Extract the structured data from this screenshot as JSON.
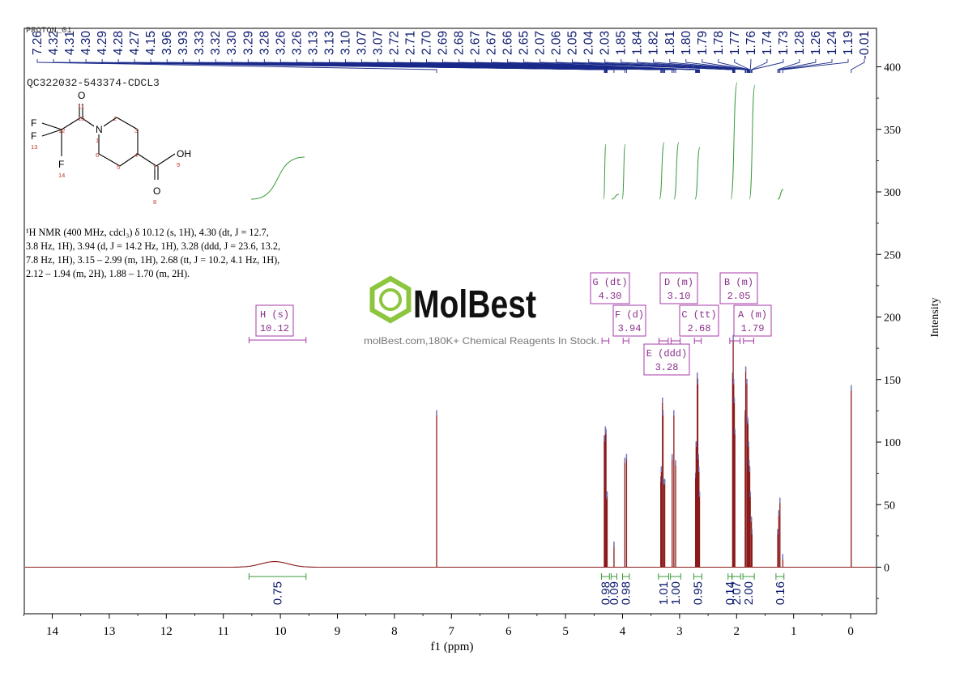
{
  "header": {
    "experiment": "PROTON_01",
    "sample": "QC322032-543374-CDCL3"
  },
  "description": {
    "line1": "¹H NMR (400 MHz, cdcl₃) δ 10.12 (s, 1H), 4.30 (dt, J = 12.7,",
    "line2": "3.8 Hz, 1H), 3.94 (d, J = 14.2 Hz, 1H), 3.28 (ddd, J = 23.6, 13.2,",
    "line3": "7.8 Hz, 1H), 3.15 – 2.99 (m, 1H), 2.68 (tt, J = 10.2, 4.1 Hz, 1H),",
    "line4": "2.12 – 1.94 (m, 2H), 1.88 – 1.70 (m, 2H)."
  },
  "watermark": {
    "brand": "MolBest",
    "tagline": "molBest.com,180K+ Chemical Reagents In Stock."
  },
  "structure": {
    "atoms": [
      {
        "label": "O",
        "num": "11"
      },
      {
        "label": "F",
        "num": "15"
      },
      {
        "label": "",
        "num": "12"
      },
      {
        "label": "",
        "num": "10"
      },
      {
        "label": "N",
        "num": "1"
      },
      {
        "label": "",
        "num": "2"
      },
      {
        "label": "",
        "num": "3"
      },
      {
        "label": "F",
        "num": "13"
      },
      {
        "label": "",
        "num": "6"
      },
      {
        "label": "",
        "num": "4"
      },
      {
        "label": "F",
        "num": "14"
      },
      {
        "label": "",
        "num": "5"
      },
      {
        "label": "",
        "num": "7"
      },
      {
        "label": "OH",
        "num": "9"
      },
      {
        "label": "O",
        "num": "8"
      }
    ]
  },
  "chart_data": {
    "type": "line",
    "xlabel": "f1 (ppm)",
    "ylabel": "Intensity",
    "xlim": [
      14.5,
      -0.45
    ],
    "ylim": [
      -40,
      410
    ],
    "x_ticks": [
      14,
      13,
      12,
      11,
      10,
      9,
      8,
      7,
      6,
      5,
      4,
      3,
      2,
      1,
      0
    ],
    "y_ticks": [
      0,
      50,
      100,
      150,
      200,
      250,
      300,
      350,
      400
    ],
    "peak_labels": [
      "7.26",
      "4.32",
      "4.31",
      "4.30",
      "4.29",
      "4.28",
      "4.27",
      "4.15",
      "3.96",
      "3.93",
      "3.33",
      "3.32",
      "3.30",
      "3.29",
      "3.28",
      "3.26",
      "3.26",
      "3.13",
      "3.13",
      "3.10",
      "3.07",
      "3.07",
      "2.72",
      "2.71",
      "2.70",
      "2.69",
      "2.68",
      "2.67",
      "2.67",
      "2.66",
      "2.65",
      "2.07",
      "2.06",
      "2.05",
      "2.04",
      "2.03",
      "1.85",
      "1.84",
      "1.82",
      "1.81",
      "1.80",
      "1.79",
      "1.78",
      "1.77",
      "1.76",
      "1.74",
      "1.73",
      "1.28",
      "1.26",
      "1.24",
      "1.19",
      "-0.01"
    ],
    "multiplets": [
      {
        "id": "H",
        "type": "(s)",
        "shift": "10.12",
        "from": 10.55,
        "to": 9.55
      },
      {
        "id": "G",
        "type": "(dt)",
        "shift": "4.30",
        "from": 4.36,
        "to": 4.24
      },
      {
        "id": "F",
        "type": "(d)",
        "shift": "3.94",
        "from": 3.99,
        "to": 3.89
      },
      {
        "id": "E",
        "type": "(ddd)",
        "shift": "3.28",
        "from": 3.36,
        "to": 3.2
      },
      {
        "id": "D",
        "type": "(m)",
        "shift": "3.10",
        "from": 3.15,
        "to": 2.99
      },
      {
        "id": "C",
        "type": "(tt)",
        "shift": "2.68",
        "from": 2.74,
        "to": 2.62
      },
      {
        "id": "B",
        "type": "(m)",
        "shift": "2.05",
        "from": 2.12,
        "to": 1.94
      },
      {
        "id": "A",
        "type": "(m)",
        "shift": "1.79",
        "from": 1.88,
        "to": 1.7
      }
    ],
    "integrals": [
      {
        "value": "0.75",
        "from": 10.55,
        "to": 9.55
      },
      {
        "value": "0.98",
        "from": 4.37,
        "to": 4.23
      },
      {
        "value": "0.09",
        "from": 4.2,
        "to": 4.1
      },
      {
        "value": "0.98",
        "from": 4.0,
        "to": 3.88
      },
      {
        "value": "1.01",
        "from": 3.37,
        "to": 3.19
      },
      {
        "value": "1.00",
        "from": 3.16,
        "to": 2.98
      },
      {
        "value": "0.95",
        "from": 2.75,
        "to": 2.61
      },
      {
        "value": "0.14",
        "from": 2.15,
        "to": 2.08
      },
      {
        "value": "2.07",
        "from": 2.08,
        "to": 1.93
      },
      {
        "value": "2.00",
        "from": 1.89,
        "to": 1.69
      },
      {
        "value": "0.16",
        "from": 1.31,
        "to": 1.17
      }
    ],
    "peaks": [
      {
        "ppm": 7.26,
        "h": 125
      },
      {
        "ppm": 4.32,
        "h": 105
      },
      {
        "ppm": 4.31,
        "h": 104
      },
      {
        "ppm": 4.3,
        "h": 112
      },
      {
        "ppm": 4.29,
        "h": 110
      },
      {
        "ppm": 4.28,
        "h": 58
      },
      {
        "ppm": 4.27,
        "h": 60
      },
      {
        "ppm": 4.15,
        "h": 20
      },
      {
        "ppm": 3.96,
        "h": 87
      },
      {
        "ppm": 3.93,
        "h": 90
      },
      {
        "ppm": 3.33,
        "h": 72
      },
      {
        "ppm": 3.32,
        "h": 80
      },
      {
        "ppm": 3.3,
        "h": 135
      },
      {
        "ppm": 3.29,
        "h": 125
      },
      {
        "ppm": 3.28,
        "h": 70
      },
      {
        "ppm": 3.26,
        "h": 70
      },
      {
        "ppm": 3.13,
        "h": 90
      },
      {
        "ppm": 3.1,
        "h": 125
      },
      {
        "ppm": 3.07,
        "h": 85
      },
      {
        "ppm": 2.72,
        "h": 75
      },
      {
        "ppm": 2.71,
        "h": 100
      },
      {
        "ppm": 2.7,
        "h": 100
      },
      {
        "ppm": 2.69,
        "h": 155
      },
      {
        "ppm": 2.68,
        "h": 150
      },
      {
        "ppm": 2.67,
        "h": 90
      },
      {
        "ppm": 2.66,
        "h": 80
      },
      {
        "ppm": 2.65,
        "h": 60
      },
      {
        "ppm": 2.07,
        "h": 155
      },
      {
        "ppm": 2.06,
        "h": 185
      },
      {
        "ppm": 2.05,
        "h": 150
      },
      {
        "ppm": 2.04,
        "h": 135
      },
      {
        "ppm": 2.03,
        "h": 110
      },
      {
        "ppm": 1.85,
        "h": 125
      },
      {
        "ppm": 1.84,
        "h": 160
      },
      {
        "ppm": 1.82,
        "h": 150
      },
      {
        "ppm": 1.81,
        "h": 120
      },
      {
        "ppm": 1.8,
        "h": 118
      },
      {
        "ppm": 1.79,
        "h": 100
      },
      {
        "ppm": 1.78,
        "h": 85
      },
      {
        "ppm": 1.77,
        "h": 80
      },
      {
        "ppm": 1.76,
        "h": 60
      },
      {
        "ppm": 1.74,
        "h": 40
      },
      {
        "ppm": 1.73,
        "h": 30
      },
      {
        "ppm": 1.28,
        "h": 30
      },
      {
        "ppm": 1.26,
        "h": 45
      },
      {
        "ppm": 1.24,
        "h": 55
      },
      {
        "ppm": 1.19,
        "h": 10
      },
      {
        "ppm": -0.01,
        "h": 145
      }
    ]
  }
}
